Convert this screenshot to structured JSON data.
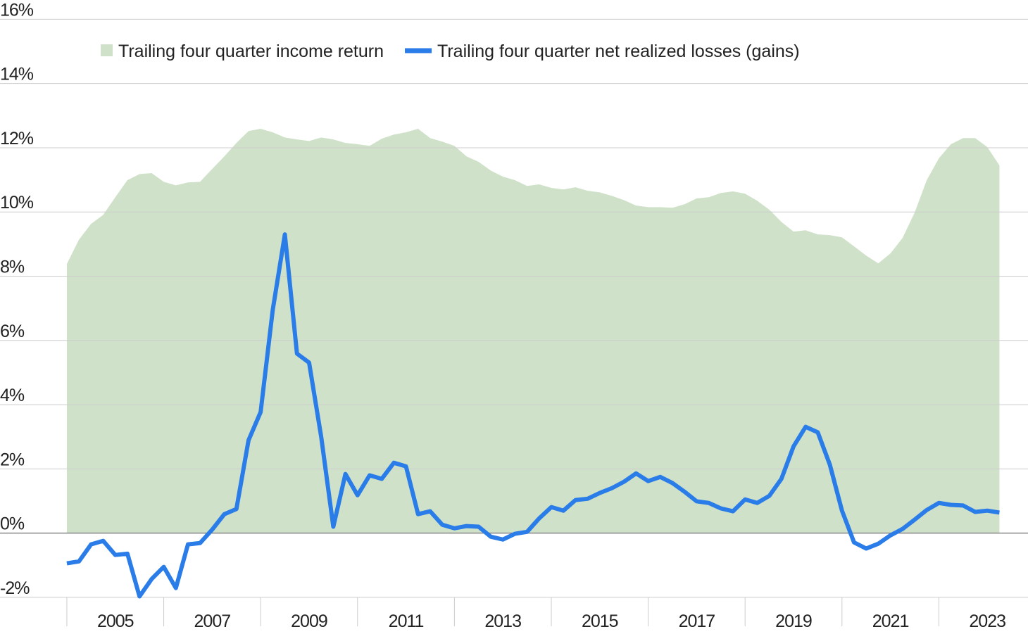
{
  "chart_data": {
    "type": "line",
    "x": [
      2005,
      2005.25,
      2005.5,
      2005.75,
      2006,
      2006.25,
      2006.5,
      2006.75,
      2007,
      2007.25,
      2007.5,
      2007.75,
      2008,
      2008.25,
      2008.5,
      2008.75,
      2009,
      2009.25,
      2009.5,
      2009.75,
      2010,
      2010.25,
      2010.5,
      2010.75,
      2011,
      2011.25,
      2011.5,
      2011.75,
      2012,
      2012.25,
      2012.5,
      2012.75,
      2013,
      2013.25,
      2013.5,
      2013.75,
      2014,
      2014.25,
      2014.5,
      2014.75,
      2015,
      2015.25,
      2015.5,
      2015.75,
      2016,
      2016.25,
      2016.5,
      2016.75,
      2017,
      2017.25,
      2017.5,
      2017.75,
      2018,
      2018.25,
      2018.5,
      2018.75,
      2019,
      2019.25,
      2019.5,
      2019.75,
      2020,
      2020.25,
      2020.5,
      2020.75,
      2021,
      2021.25,
      2021.5,
      2021.75,
      2022,
      2022.25,
      2022.5,
      2022.75,
      2023,
      2023.25,
      2023.5,
      2023.75,
      2024,
      2024.25
    ],
    "series": [
      {
        "name": "Trailing four quarter income return",
        "kind": "area",
        "color": "#cfe2c9",
        "values": [
          8.38,
          9.14,
          9.63,
          9.91,
          10.46,
          10.99,
          11.18,
          11.21,
          10.94,
          10.83,
          10.92,
          10.94,
          11.34,
          11.73,
          12.15,
          12.52,
          12.59,
          12.48,
          12.32,
          12.26,
          12.21,
          12.32,
          12.26,
          12.15,
          12.11,
          12.06,
          12.28,
          12.41,
          12.48,
          12.59,
          12.3,
          12.19,
          12.06,
          11.73,
          11.56,
          11.29,
          11.1,
          10.99,
          10.81,
          10.86,
          10.75,
          10.7,
          10.77,
          10.66,
          10.61,
          10.5,
          10.37,
          10.2,
          10.15,
          10.15,
          10.13,
          10.24,
          10.42,
          10.46,
          10.59,
          10.64,
          10.57,
          10.35,
          10.07,
          9.69,
          9.39,
          9.43,
          9.3,
          9.28,
          9.21,
          8.93,
          8.64,
          8.4,
          8.71,
          9.19,
          9.98,
          10.99,
          11.67,
          12.11,
          12.3,
          12.3,
          12.02,
          11.45
        ]
      },
      {
        "name": "Trailing four quarter net realized losses (gains)",
        "kind": "line",
        "color": "#2a7de8",
        "values": [
          -0.94,
          -0.88,
          -0.35,
          -0.24,
          -0.68,
          -0.64,
          -1.97,
          -1.43,
          -1.05,
          -1.71,
          -0.35,
          -0.31,
          0.11,
          0.59,
          0.75,
          2.89,
          3.77,
          6.95,
          9.3,
          5.59,
          5.31,
          3.0,
          0.2,
          1.84,
          1.18,
          1.8,
          1.69,
          2.19,
          2.08,
          0.59,
          0.68,
          0.26,
          0.15,
          0.22,
          0.2,
          -0.11,
          -0.2,
          -0.02,
          0.04,
          0.46,
          0.81,
          0.7,
          1.03,
          1.07,
          1.25,
          1.4,
          1.6,
          1.86,
          1.62,
          1.75,
          1.56,
          1.29,
          0.99,
          0.94,
          0.77,
          0.68,
          1.05,
          0.94,
          1.16,
          1.69,
          2.7,
          3.31,
          3.14,
          2.13,
          0.7,
          -0.29,
          -0.48,
          -0.33,
          -0.07,
          0.13,
          0.42,
          0.72,
          0.94,
          0.88,
          0.86,
          0.66,
          0.7,
          0.64
        ]
      }
    ],
    "xlim": [
      2003.62,
      2024.84
    ],
    "xticks": [
      2005,
      2007,
      2009,
      2011,
      2013,
      2015,
      2017,
      2019,
      2021,
      2023
    ],
    "ylim": [
      -2.9,
      16.6
    ],
    "yticks": [
      {
        "value": -2,
        "label": "-2%"
      },
      {
        "value": 0,
        "label": "0%"
      },
      {
        "value": 2,
        "label": "2%"
      },
      {
        "value": 4,
        "label": "4%"
      },
      {
        "value": 6,
        "label": "6%"
      },
      {
        "value": 8,
        "label": "8%"
      },
      {
        "value": 10,
        "label": "10%"
      },
      {
        "value": 12,
        "label": "12%"
      },
      {
        "value": 14,
        "label": "14%"
      },
      {
        "value": 16,
        "label": "16%"
      }
    ],
    "grid": true
  }
}
